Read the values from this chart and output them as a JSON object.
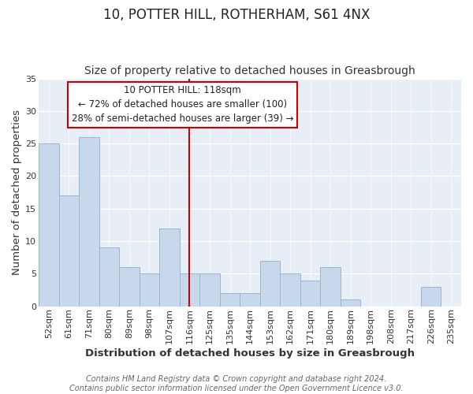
{
  "title": "10, POTTER HILL, ROTHERHAM, S61 4NX",
  "subtitle": "Size of property relative to detached houses in Greasbrough",
  "xlabel": "Distribution of detached houses by size in Greasbrough",
  "ylabel": "Number of detached properties",
  "categories": [
    "52sqm",
    "61sqm",
    "71sqm",
    "80sqm",
    "89sqm",
    "98sqm",
    "107sqm",
    "116sqm",
    "125sqm",
    "135sqm",
    "144sqm",
    "153sqm",
    "162sqm",
    "171sqm",
    "180sqm",
    "189sqm",
    "198sqm",
    "208sqm",
    "217sqm",
    "226sqm",
    "235sqm"
  ],
  "values": [
    25,
    17,
    26,
    9,
    6,
    5,
    12,
    5,
    5,
    2,
    2,
    7,
    5,
    4,
    6,
    1,
    0,
    0,
    0,
    3,
    0
  ],
  "bar_color": "#c8d8ec",
  "bar_edgecolor": "#9ab4cc",
  "vline_x_index": 7,
  "vline_color": "#cc0000",
  "ylim": [
    0,
    35
  ],
  "yticks": [
    0,
    5,
    10,
    15,
    20,
    25,
    30,
    35
  ],
  "annotation_box_text": [
    "10 POTTER HILL: 118sqm",
    "← 72% of detached houses are smaller (100)",
    "28% of semi-detached houses are larger (39) →"
  ],
  "annotation_box_edgecolor": "#cc0000",
  "footer_line1": "Contains HM Land Registry data © Crown copyright and database right 2024.",
  "footer_line2": "Contains public sector information licensed under the Open Government Licence v3.0.",
  "background_color": "#ffffff",
  "plot_bg_color": "#e8eef6",
  "grid_color": "#ffffff",
  "title_fontsize": 12,
  "subtitle_fontsize": 10,
  "axis_label_fontsize": 9.5,
  "tick_fontsize": 8,
  "footer_fontsize": 7,
  "ann_fontsize": 8.5
}
